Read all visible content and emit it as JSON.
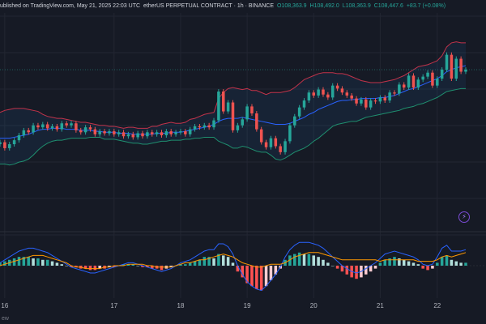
{
  "header": {
    "published": "ublished on TradingView.com, May 21, 2025 22:03 UTC",
    "symbol": "etherUS PERPETUAL CONTRACT · 1h · BINANCE",
    "open": "O108,363.9",
    "high": "H108,492.0",
    "low": "L108,363.9",
    "close": "C108,447.6",
    "change": "+83.7 (+0.08%)"
  },
  "footer": {
    "label": "ew"
  },
  "icons": {
    "alert": "lightning-alert-icon"
  },
  "colors": {
    "background": "#161a25",
    "up_candle": "#26a69a",
    "down_candle": "#ef5350",
    "bb_upper": "#c2334a",
    "bb_lower": "#1f8f6f",
    "bb_basis": "#2962ff",
    "macd_line": "#2962ff",
    "signal_line": "#ff9800"
  },
  "chart_data": [
    {
      "type": "candlestick",
      "title": "",
      "x_tick_labels": [
        "16",
        "17",
        "18",
        "19",
        "20",
        "21",
        "22"
      ],
      "x_tick_positions": [
        1,
        24,
        38,
        52,
        66,
        80,
        92
      ],
      "y_range": [
        102500,
        110000
      ],
      "overlays": [
        "bollinger_upper",
        "bollinger_basis",
        "bollinger_lower"
      ],
      "grid": true,
      "close": [
        104800,
        104500,
        104700,
        104900,
        105150,
        105400,
        105300,
        105650,
        105550,
        105700,
        105500,
        105600,
        105450,
        105750,
        105650,
        105750,
        105400,
        105300,
        105550,
        105450,
        105200,
        105350,
        105250,
        105350,
        105200,
        105300,
        105100,
        105200,
        105050,
        105250,
        105100,
        105300,
        105200,
        105300,
        105150,
        105350,
        105200,
        105300,
        105350,
        105200,
        105450,
        105600,
        105550,
        105650,
        105550,
        105900,
        107350,
        106350,
        106800,
        105400,
        105650,
        105950,
        106600,
        106250,
        105450,
        104800,
        104550,
        105000,
        104600,
        104300,
        104850,
        105650,
        106100,
        106550,
        106900,
        107300,
        107150,
        107450,
        107200,
        107050,
        107650,
        107500,
        107300,
        107150,
        107000,
        106750,
        106950,
        106550,
        106900,
        106850,
        107050,
        106900,
        107300,
        107250,
        107700,
        107550,
        108150,
        107550,
        107950,
        108100,
        108300,
        107650,
        108000,
        108450,
        109200,
        108000,
        109000,
        108350,
        108450
      ],
      "bollinger_upper": [
        106300,
        106400,
        106450,
        106500,
        106500,
        106500,
        106450,
        106400,
        106350,
        106200,
        106100,
        106050,
        106000,
        106000,
        105950,
        105900,
        105850,
        105800,
        105800,
        105750,
        105700,
        105650,
        105650,
        105600,
        105600,
        105550,
        105500,
        105550,
        105550,
        105500,
        105500,
        105500,
        105600,
        105600,
        105700,
        105750,
        105800,
        105750,
        105750,
        105800,
        105950,
        106000,
        106100,
        106200,
        106250,
        106300,
        107000,
        107300,
        107500,
        107550,
        107500,
        107450,
        107500,
        107400,
        107400,
        107300,
        107200,
        107300,
        107300,
        107300,
        107350,
        107400,
        107550,
        107750,
        107950,
        108050,
        108150,
        108250,
        108300,
        108300,
        108300,
        108250,
        108250,
        108200,
        108100,
        108000,
        107900,
        107850,
        107800,
        107800,
        107800,
        107850,
        107900,
        107950,
        108050,
        108150,
        108300,
        108450,
        108600,
        108650,
        108700,
        108800,
        108900,
        109150,
        109600,
        109800,
        109850,
        109800,
        109800
      ],
      "bollinger_basis": [
        105000,
        105000,
        105000,
        105050,
        105100,
        105150,
        105200,
        105300,
        105400,
        105450,
        105450,
        105500,
        105500,
        105500,
        105450,
        105450,
        105450,
        105400,
        105400,
        105400,
        105350,
        105350,
        105300,
        105300,
        105300,
        105250,
        105250,
        105250,
        105200,
        105200,
        105200,
        105200,
        105200,
        105250,
        105250,
        105250,
        105300,
        105300,
        105300,
        105350,
        105400,
        105450,
        105500,
        105550,
        105600,
        105700,
        105850,
        105950,
        106000,
        106000,
        106000,
        106050,
        106000,
        105950,
        105900,
        105850,
        105800,
        105750,
        105700,
        105700,
        105700,
        105750,
        105850,
        105950,
        106050,
        106200,
        106300,
        106450,
        106550,
        106650,
        106750,
        106850,
        106900,
        106900,
        106950,
        106950,
        107000,
        107000,
        107000,
        107000,
        107050,
        107050,
        107100,
        107150,
        107250,
        107350,
        107450,
        107500,
        107600,
        107700,
        107800,
        107900,
        108000,
        108150,
        108350,
        108450,
        108550,
        108600,
        108650
      ],
      "bollinger_lower": [
        103700,
        103700,
        103650,
        103700,
        103800,
        103850,
        103950,
        104150,
        104400,
        104600,
        104750,
        104850,
        104900,
        104900,
        104950,
        105000,
        105000,
        105000,
        105000,
        105050,
        105050,
        105050,
        104950,
        104950,
        104950,
        104900,
        104850,
        104800,
        104750,
        104750,
        104700,
        104700,
        104750,
        104800,
        104850,
        104850,
        104900,
        104900,
        104900,
        104950,
        104950,
        105000,
        105000,
        105050,
        105050,
        105050,
        104850,
        104750,
        104650,
        104500,
        104500,
        104600,
        104550,
        104450,
        104350,
        104300,
        104300,
        104150,
        103950,
        103900,
        104000,
        104150,
        104300,
        104400,
        104500,
        104650,
        104850,
        105000,
        105200,
        105400,
        105600,
        105700,
        105750,
        105800,
        105850,
        105850,
        105950,
        106050,
        106100,
        106150,
        106200,
        106250,
        106300,
        106350,
        106400,
        106500,
        106550,
        106600,
        106700,
        106750,
        106850,
        106950,
        107050,
        107200,
        107350,
        107400,
        107450,
        107500,
        107500
      ]
    },
    {
      "type": "bar",
      "title": "",
      "y_range": [
        -1,
        1
      ],
      "series": [
        {
          "values": [
            0.1,
            0.15,
            0.2,
            0.25,
            0.3,
            0.3,
            0.3,
            0.25,
            0.25,
            0.2,
            0.2,
            0.15,
            0.1,
            0.05,
            0,
            -0.05,
            -0.05,
            -0.1,
            -0.1,
            -0.15,
            -0.15,
            -0.1,
            -0.1,
            -0.05,
            -0.05,
            0,
            0.05,
            0.05,
            0.05,
            0,
            -0.05,
            -0.05,
            -0.1,
            -0.1,
            -0.15,
            -0.1,
            -0.05,
            0,
            0.05,
            0.05,
            0.1,
            0.15,
            0.2,
            0.3,
            0.3,
            0.25,
            0.4,
            0.35,
            0.3,
            0.1,
            -0.2,
            -0.4,
            -0.6,
            -0.7,
            -0.8,
            -0.85,
            -0.7,
            -0.5,
            -0.3,
            -0.1,
            0.2,
            0.35,
            0.4,
            0.45,
            0.4,
            0.4,
            0.35,
            0.3,
            0.2,
            0.1,
            0,
            -0.1,
            -0.2,
            -0.3,
            -0.4,
            -0.45,
            -0.4,
            -0.3,
            -0.2,
            -0.1,
            0.1,
            0.2,
            0.25,
            0.3,
            0.25,
            0.2,
            0.15,
            0.1,
            0.05,
            -0.1,
            -0.15,
            -0.1,
            0.1,
            0.3,
            0.35,
            0.2,
            0.15,
            0.1,
            0.1
          ]
        },
        {
          "values": [
            0.1,
            0.2,
            0.3,
            0.4,
            0.5,
            0.55,
            0.6,
            0.6,
            0.55,
            0.5,
            0.45,
            0.35,
            0.25,
            0.15,
            0.05,
            -0.05,
            -0.1,
            -0.15,
            -0.2,
            -0.25,
            -0.25,
            -0.2,
            -0.15,
            -0.1,
            -0.05,
            0,
            0.05,
            0.1,
            0.1,
            0.05,
            0,
            -0.05,
            -0.1,
            -0.15,
            -0.2,
            -0.15,
            -0.1,
            0,
            0.1,
            0.15,
            0.2,
            0.3,
            0.4,
            0.5,
            0.55,
            0.55,
            0.75,
            0.75,
            0.65,
            0.4,
            0,
            -0.3,
            -0.55,
            -0.7,
            -0.8,
            -0.85,
            -0.7,
            -0.5,
            -0.3,
            -0.05,
            0.3,
            0.55,
            0.7,
            0.8,
            0.8,
            0.8,
            0.75,
            0.7,
            0.6,
            0.45,
            0.3,
            0.15,
            0,
            -0.1,
            -0.2,
            -0.25,
            -0.2,
            -0.1,
            0,
            0.1,
            0.25,
            0.4,
            0.45,
            0.5,
            0.45,
            0.4,
            0.35,
            0.3,
            0.2,
            0.05,
            0,
            0.05,
            0.3,
            0.6,
            0.7,
            0.5,
            0.5,
            0.5,
            0.55
          ]
        },
        {
          "values": [
            0,
            0.05,
            0.1,
            0.15,
            0.2,
            0.25,
            0.3,
            0.35,
            0.35,
            0.35,
            0.3,
            0.25,
            0.2,
            0.15,
            0.1,
            0,
            -0.05,
            -0.05,
            -0.1,
            -0.1,
            -0.1,
            -0.1,
            -0.05,
            -0.05,
            0,
            0,
            0,
            0.05,
            0.05,
            0.05,
            0.05,
            0,
            0,
            -0.05,
            -0.05,
            -0.05,
            -0.05,
            0,
            0.05,
            0.1,
            0.1,
            0.15,
            0.2,
            0.2,
            0.25,
            0.3,
            0.35,
            0.4,
            0.35,
            0.3,
            0.2,
            0.1,
            0.05,
            0,
            -0.05,
            -0.05,
            0,
            0.05,
            0.05,
            0.05,
            0.1,
            0.2,
            0.3,
            0.35,
            0.4,
            0.45,
            0.45,
            0.45,
            0.4,
            0.35,
            0.3,
            0.25,
            0.2,
            0.2,
            0.2,
            0.2,
            0.2,
            0.2,
            0.2,
            0.2,
            0.15,
            0.2,
            0.2,
            0.2,
            0.2,
            0.2,
            0.2,
            0.2,
            0.15,
            0.15,
            0.15,
            0.15,
            0.2,
            0.3,
            0.35,
            0.3,
            0.35,
            0.4,
            0.45
          ]
        }
      ]
    }
  ]
}
